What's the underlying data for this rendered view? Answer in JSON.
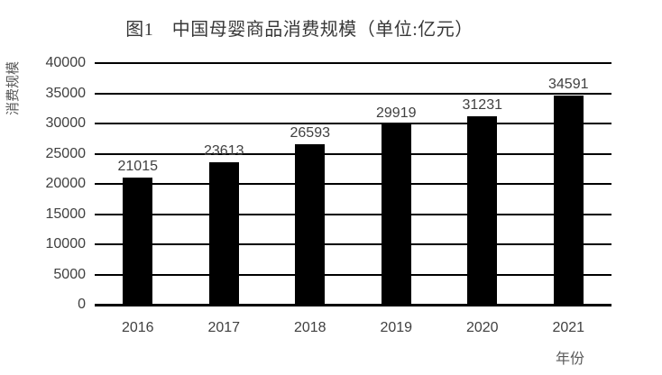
{
  "chart_data": {
    "type": "bar",
    "title": "图1　中国母婴商品消费规模（单位:亿元）",
    "ylabel": "消费规模",
    "xlabel": "年份",
    "categories": [
      "2016",
      "2017",
      "2018",
      "2019",
      "2020",
      "2021"
    ],
    "values": [
      21015,
      23613,
      26593,
      29919,
      31231,
      34591
    ],
    "ylim": [
      0,
      40000
    ],
    "yticks": [
      0,
      5000,
      10000,
      15000,
      20000,
      25000,
      30000,
      35000,
      40000
    ],
    "grid": true,
    "legend_position": "none",
    "bar_color": "#000000",
    "gridline_color": "#000000",
    "tick_label_color": "#404040",
    "title_color": "#383838",
    "axis_title_color": "#595959",
    "background_color": "#ffffff"
  }
}
